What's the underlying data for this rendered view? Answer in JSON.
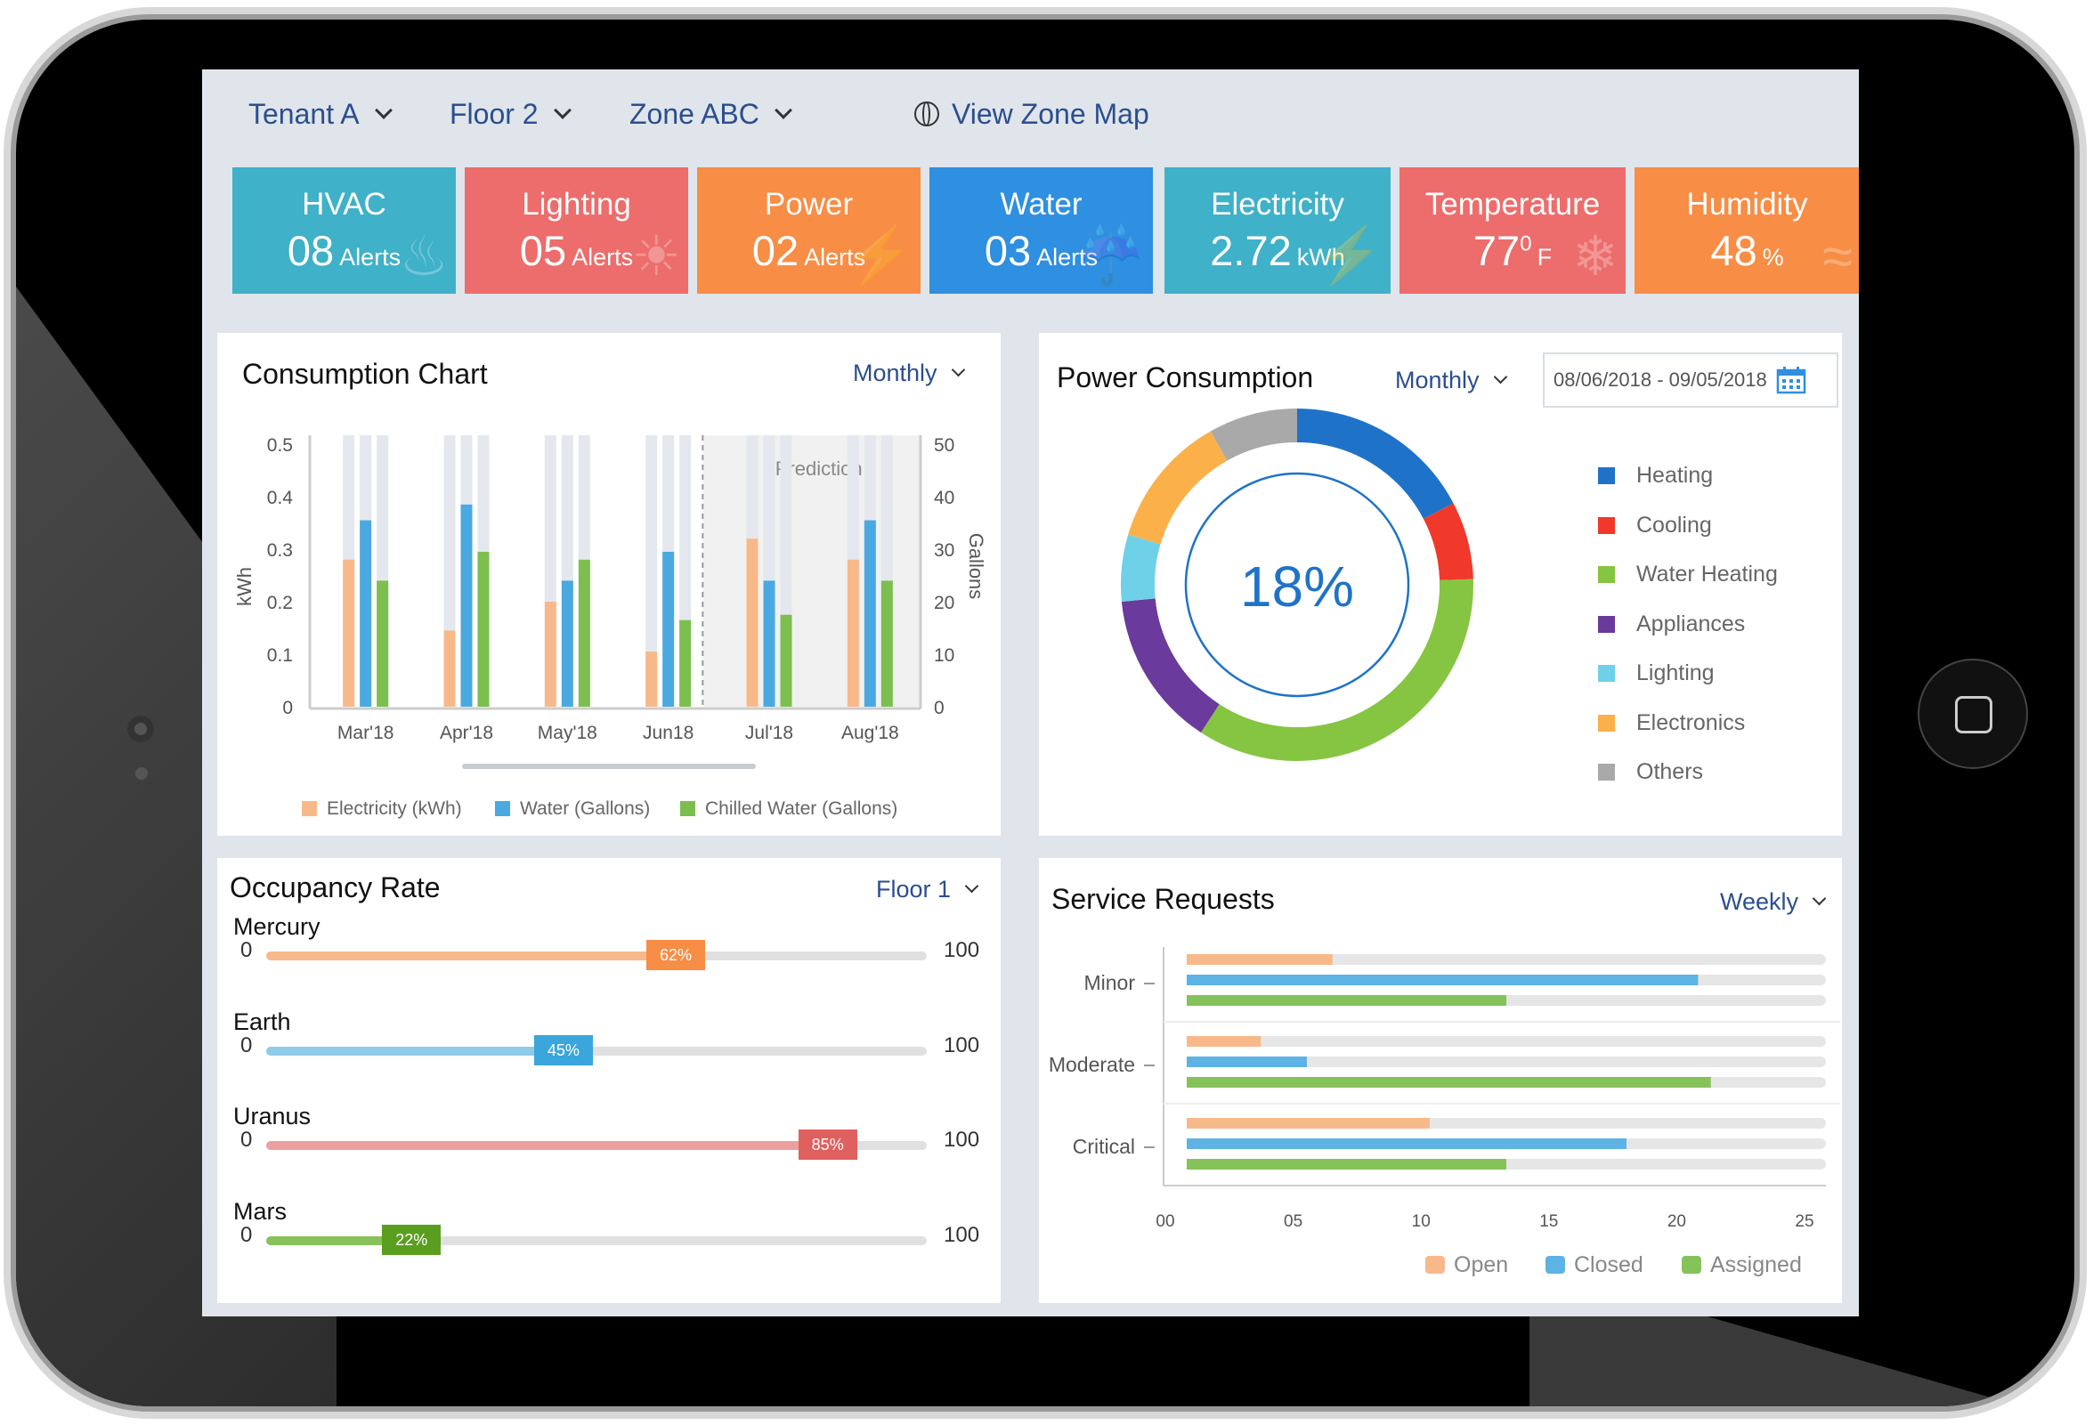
{
  "nav": {
    "tenant": "Tenant A",
    "floor": "Floor 2",
    "zone": "Zone ABC",
    "map": "View Zone Map"
  },
  "tiles": [
    {
      "name": "HVAC",
      "value": "08",
      "unit": "Alerts",
      "color": "#3fb1c8",
      "icon": "fire-icon"
    },
    {
      "name": "Lighting",
      "value": "05",
      "unit": "Alerts",
      "color": "#ec6d6b",
      "icon": "bulb-icon"
    },
    {
      "name": "Power",
      "value": "02",
      "unit": "Alerts",
      "color": "#f88d45",
      "icon": "bolt-icon"
    },
    {
      "name": "Water",
      "value": "03",
      "unit": "Alerts",
      "color": "#2f8fe0",
      "icon": "drops-icon"
    },
    {
      "name": "Electricity",
      "value": "2.72",
      "unit": "kWh",
      "color": "#3fb1c8",
      "icon": "bolt-icon"
    },
    {
      "name": "Temperature",
      "value": "77",
      "unit": "F",
      "sup": "0",
      "color": "#ec6d6b",
      "icon": "thermometer-icon"
    },
    {
      "name": "Humidity",
      "value": "48",
      "unit": "%",
      "color": "#f88d45",
      "icon": "waves-icon"
    }
  ],
  "consumption": {
    "title": "Consumption Chart",
    "period": "Monthly",
    "prediction_label": "Prediction",
    "chart_data": {
      "type": "bar",
      "categories": [
        "Mar'18",
        "Apr'18",
        "May'18",
        "Jun18",
        "Jul'18",
        "Aug'18"
      ],
      "ylabel": "kWh",
      "y2label": "Gallons",
      "ylim": [
        0,
        0.5
      ],
      "y2lim": [
        0,
        50
      ],
      "yticks": [
        "0",
        "0.1",
        "0.2",
        "0.3",
        "0.4",
        "0.5"
      ],
      "y2ticks": [
        "0",
        "10",
        "20",
        "30",
        "40",
        "50"
      ],
      "series": [
        {
          "name": "Electricity (kWh)",
          "axis": "left",
          "color": "#f8b98a",
          "values": [
            0.28,
            0.145,
            0.2,
            0.105,
            0.32,
            0.28
          ]
        },
        {
          "name": "Water (Gallons)",
          "axis": "right",
          "color": "#4aa9e0",
          "values": [
            35.5,
            38.5,
            24,
            29.5,
            24,
            35.5
          ]
        },
        {
          "name": "Chilled Water (Gallons)",
          "axis": "right",
          "color": "#7cbf4f",
          "values": [
            24,
            29.5,
            28,
            16.5,
            17.5,
            24
          ]
        }
      ],
      "prediction_from": "Jul'18",
      "grid": false,
      "legend": "bottom"
    }
  },
  "power": {
    "title": "Power Consumption",
    "period": "Monthly",
    "date_range": "08/06/2018 - 09/05/2018",
    "center_text": "18%",
    "chart_data": {
      "type": "pie",
      "labels": [
        "Heating",
        "Cooling",
        "Water Heating",
        "Appliances",
        "Lighting",
        "Electronics",
        "Others"
      ],
      "values": [
        17,
        7,
        34,
        14,
        6,
        12,
        8
      ],
      "colors": [
        "#1e73c8",
        "#f0392b",
        "#86c541",
        "#6a3a9c",
        "#6fd1e8",
        "#fbb04a",
        "#a9a9a9"
      ],
      "legend": "right"
    }
  },
  "occupancy": {
    "title": "Occupancy Rate",
    "floor": "Floor 1",
    "min": "0",
    "max": "100",
    "items": [
      {
        "name": "Mercury",
        "value": 62,
        "label": "62%",
        "color": "#f8b98a",
        "badge": "#f88d45"
      },
      {
        "name": "Earth",
        "value": 45,
        "label": "45%",
        "color": "#8fcbe9",
        "badge": "#3aa6db"
      },
      {
        "name": "Uranus",
        "value": 85,
        "label": "85%",
        "color": "#eba09e",
        "badge": "#e0605f"
      },
      {
        "name": "Mars",
        "value": 22,
        "label": "22%",
        "color": "#89c25a",
        "badge": "#5a9e1f"
      }
    ]
  },
  "service": {
    "title": "Service Requests",
    "period": "Weekly",
    "chart_data": {
      "type": "bar",
      "orientation": "horizontal",
      "categories": [
        "Minor",
        "Moderate",
        "Critical"
      ],
      "xlim": [
        0,
        25
      ],
      "xticks": [
        "00",
        "05",
        "10",
        "15",
        "20",
        "25"
      ],
      "series": [
        {
          "name": "Open",
          "color": "#f8b98a",
          "values": [
            5.7,
            2.9,
            9.5
          ]
        },
        {
          "name": "Closed",
          "color": "#5db3e3",
          "values": [
            20,
            4.7,
            17.2
          ]
        },
        {
          "name": "Assigned",
          "color": "#86c25a",
          "values": [
            12.5,
            20.5,
            12.5
          ]
        }
      ],
      "legend": "bottom"
    }
  }
}
